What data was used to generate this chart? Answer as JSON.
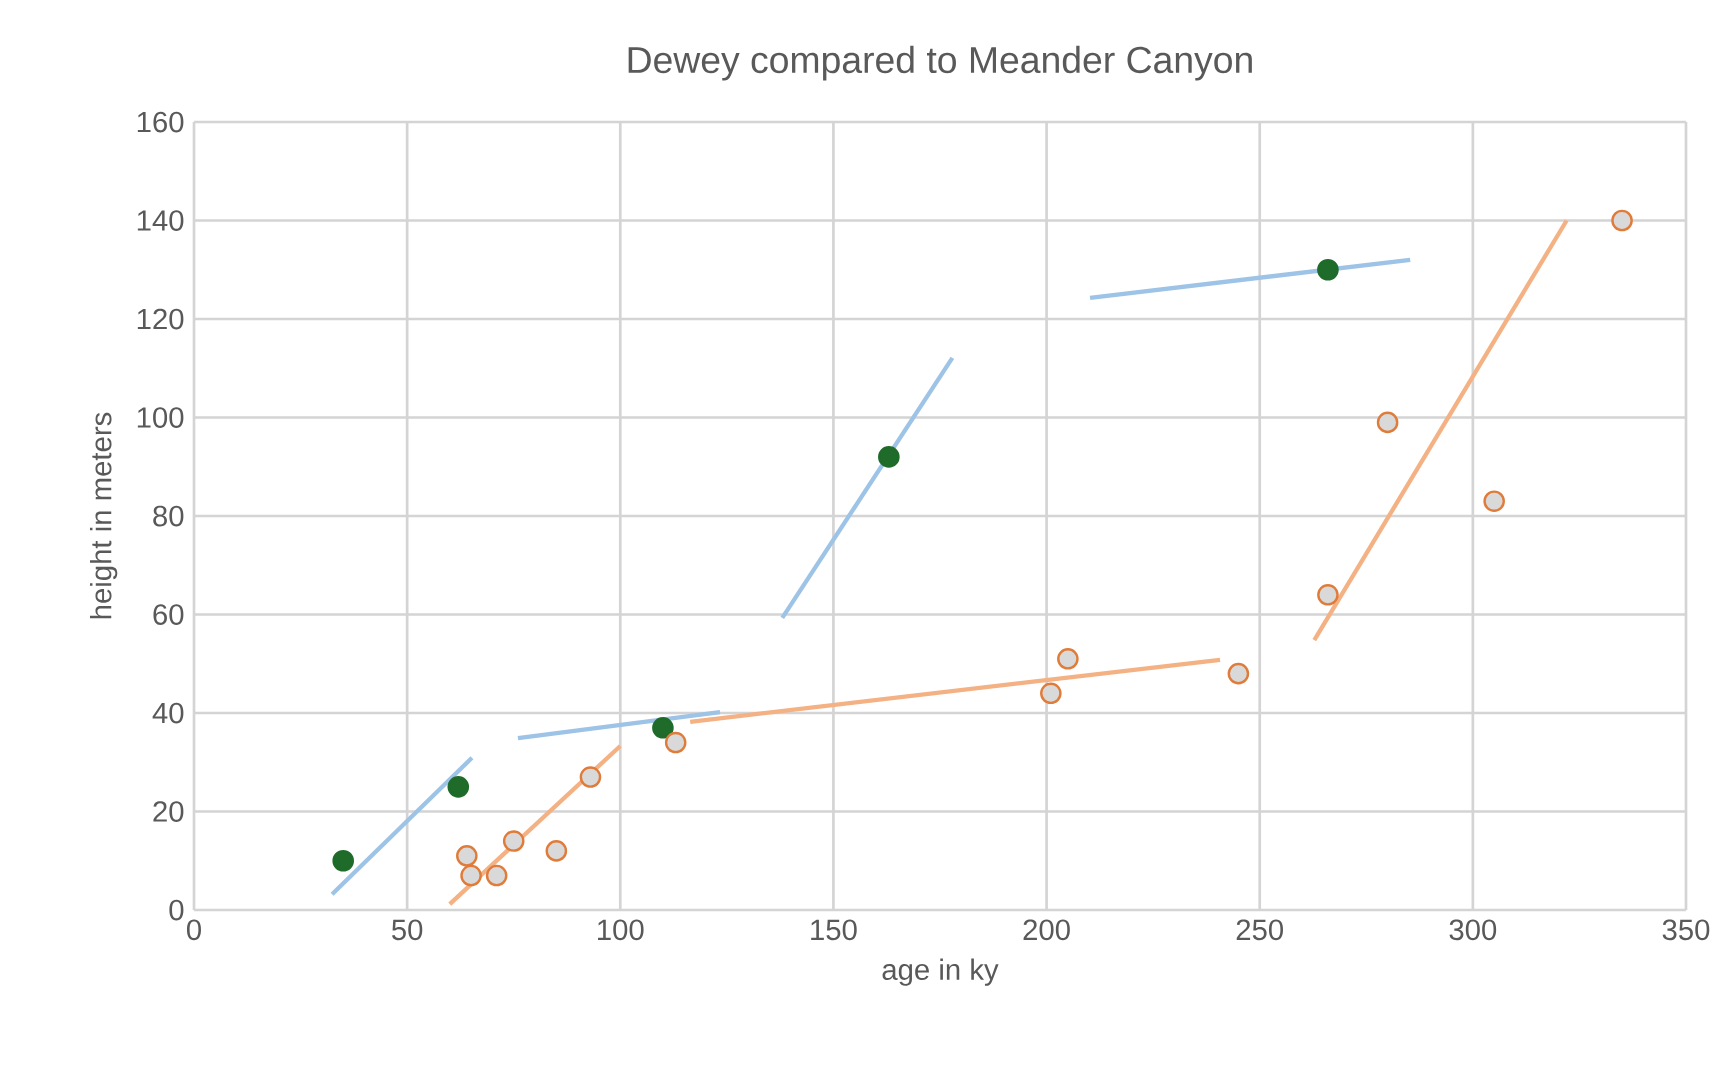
{
  "chart_data": {
    "type": "scatter",
    "title": "Dewey compared to Meander Canyon",
    "xlabel": "age in ky",
    "ylabel": "height in meters",
    "xlim": [
      0,
      350
    ],
    "xticks": [
      0,
      50,
      100,
      150,
      200,
      250,
      300,
      350
    ],
    "ylim": [
      0,
      160
    ],
    "yticks": [
      0,
      20,
      40,
      60,
      80,
      100,
      120,
      140,
      160
    ],
    "grid": true,
    "series": [
      {
        "type": "line",
        "color": "#9dc3e6",
        "marker": "none",
        "x": [
          32.4,
          65.2
        ],
        "values": [
          3.2,
          30.9
        ]
      },
      {
        "type": "line",
        "color": "#9dc3e6",
        "marker": "none",
        "x": [
          76,
          123.4
        ],
        "values": [
          34.9,
          40.2
        ]
      },
      {
        "type": "line",
        "color": "#9dc3e6",
        "marker": "none",
        "x": [
          138,
          177.9
        ],
        "values": [
          59.3,
          112.1
        ]
      },
      {
        "type": "line",
        "color": "#9dc3e6",
        "marker": "none",
        "x": [
          210.2,
          285.3
        ],
        "values": [
          124.3,
          132
        ]
      },
      {
        "type": "line",
        "color": "#f4b183",
        "marker": "none",
        "x": [
          60,
          100
        ],
        "values": [
          1.2,
          33.3
        ]
      },
      {
        "type": "line",
        "color": "#f4b183",
        "marker": "none",
        "x": [
          116.4,
          240.7
        ],
        "values": [
          38.2,
          50.8
        ]
      },
      {
        "type": "line",
        "color": "#f4b183",
        "marker": "none",
        "x": [
          262.8,
          322
        ],
        "values": [
          54.8,
          140
        ]
      },
      {
        "color": "#1e6b2a",
        "marker": "circle",
        "x": [
          35,
          62,
          110,
          163,
          266
        ],
        "values": [
          10,
          25,
          37,
          92,
          130
        ]
      },
      {
        "color": "#e07b39",
        "marker": "circle",
        "x": [
          64,
          65,
          71,
          75,
          85,
          93,
          113,
          201,
          205,
          245,
          266,
          280,
          305,
          335
        ],
        "values": [
          11,
          7,
          7,
          14,
          12,
          27,
          34,
          44,
          51,
          48,
          64,
          99,
          83,
          140
        ]
      }
    ]
  }
}
